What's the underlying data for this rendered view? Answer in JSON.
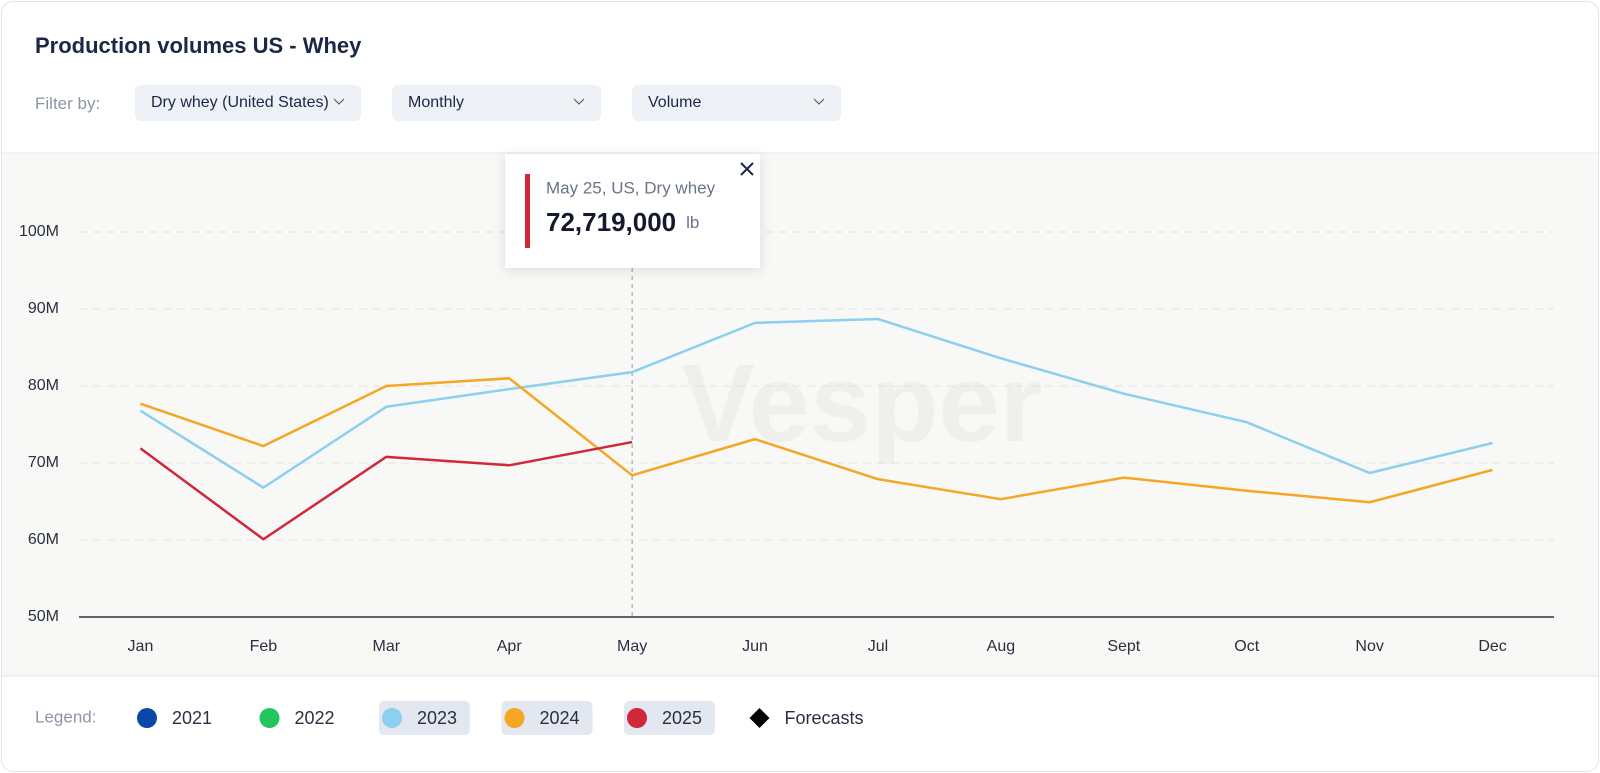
{
  "filters": {
    "label": "Filter by:",
    "options": [
      "Dry whey (United States)",
      "Monthly",
      "Volume"
    ]
  },
  "chart_data": {
    "type": "line",
    "title": "Production volumes US - Whey",
    "watermark": "Vesper",
    "categories": [
      "Jan",
      "Feb",
      "Mar",
      "Apr",
      "May",
      "Jun",
      "Jul",
      "Aug",
      "Sept",
      "Oct",
      "Nov",
      "Dec"
    ],
    "ylim": [
      50000000,
      110000000
    ],
    "yticks": [
      {
        "value": 50000000,
        "label": "50M"
      },
      {
        "value": 60000000,
        "label": "60M"
      },
      {
        "value": 70000000,
        "label": "70M"
      },
      {
        "value": 80000000,
        "label": "80M"
      },
      {
        "value": 90000000,
        "label": "90M"
      },
      {
        "value": 100000000,
        "label": "100M"
      }
    ],
    "grid": true,
    "legend_label": "Legend:",
    "forecast_legend": "Forecasts",
    "series": [
      {
        "name": "2021",
        "color": "#0b47a8",
        "active": false,
        "values": [
          null,
          null,
          null,
          null,
          null,
          null,
          null,
          null,
          null,
          null,
          null,
          null
        ]
      },
      {
        "name": "2022",
        "color": "#22c55e",
        "active": false,
        "values": [
          null,
          null,
          null,
          null,
          null,
          null,
          null,
          null,
          null,
          null,
          null,
          null
        ]
      },
      {
        "name": "2023",
        "color": "#8ccfee",
        "active": true,
        "values": [
          76800000,
          66800000,
          77300000,
          79600000,
          81800000,
          88200000,
          88700000,
          83600000,
          79000000,
          75300000,
          68700000,
          72600000
        ]
      },
      {
        "name": "2024",
        "color": "#f5a623",
        "active": true,
        "values": [
          77700000,
          72200000,
          80000000,
          81000000,
          68400000,
          73100000,
          67900000,
          65300000,
          68100000,
          66400000,
          64900000,
          69100000
        ]
      },
      {
        "name": "2025",
        "color": "#d0283a",
        "active": true,
        "values": [
          71900000,
          60100000,
          70800000,
          69700000,
          72719000,
          null,
          null,
          null,
          null,
          null,
          null,
          null
        ],
        "value_labels": [
          null,
          null,
          null,
          null,
          "72,719,000",
          null,
          null,
          null,
          null,
          null,
          null,
          null
        ]
      }
    ],
    "tooltip": {
      "label": "May 25, US, Dry whey",
      "unit": "lb"
    }
  }
}
